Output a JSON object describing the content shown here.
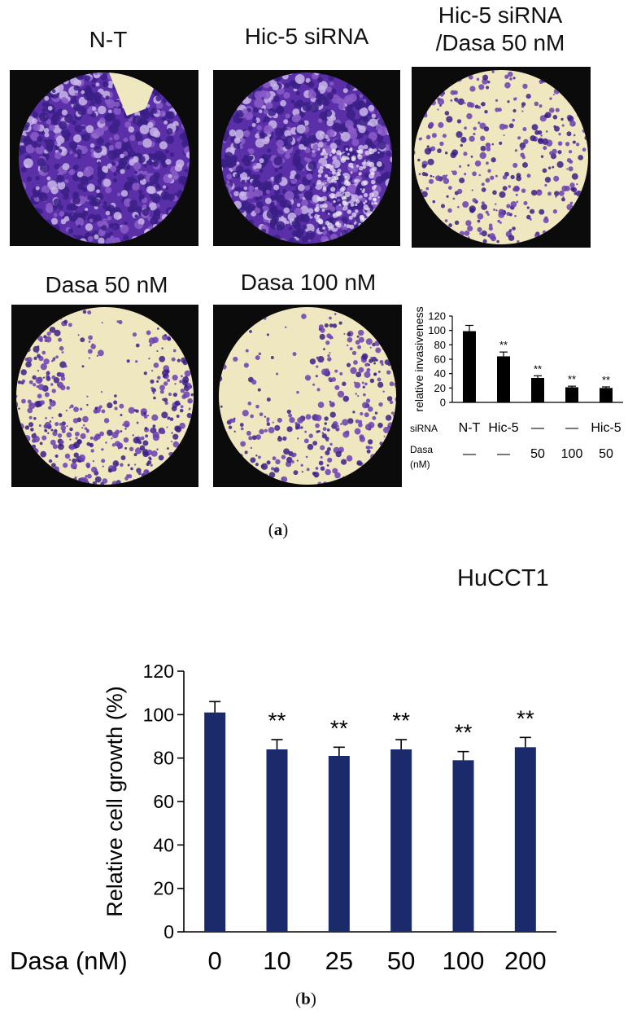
{
  "panel_a": {
    "label": "a",
    "images": [
      {
        "caption_lines": [
          "N-T"
        ],
        "palette": "purple-dense"
      },
      {
        "caption_lines": [
          "Hic-5 siRNA"
        ],
        "palette": "purple-dense"
      },
      {
        "caption_lines": [
          "Hic-5 siRNA",
          "/Dasa 50 nM"
        ],
        "palette": "sparse"
      },
      {
        "caption_lines": [
          "Dasa 50 nM"
        ],
        "palette": "medium"
      },
      {
        "caption_lines": [
          "Dasa 100 nM"
        ],
        "palette": "sparse-medium"
      }
    ],
    "colors": {
      "stain": "#6a3fb0",
      "stain_dark": "#3a1f86",
      "background_light": "#efe7c0",
      "frame": "#0b0b0b"
    }
  },
  "panel_b": {
    "label": "b",
    "colors": {
      "bar": "#1a2a6b"
    }
  },
  "chart_data": [
    {
      "type": "bar",
      "title": "",
      "ylabel": "relative invasiveness",
      "xlabel": "",
      "ylim": [
        0,
        120
      ],
      "yticks": [
        0,
        20,
        40,
        60,
        80,
        100,
        120
      ],
      "categories": [
        "N-T",
        "Hic-5",
        "—",
        "—",
        "Hic-5"
      ],
      "row_labels": {
        "siRNA": "siRNA",
        "dasa": "Dasa",
        "dasa_unit": "(nM)"
      },
      "dasa_values": [
        "—",
        "—",
        "50",
        "100",
        "50"
      ],
      "values": [
        99,
        64,
        34,
        21,
        20
      ],
      "errors": [
        8,
        6,
        3,
        1.5,
        1.5
      ],
      "annotations": [
        "",
        "**",
        "**",
        "**",
        "**"
      ],
      "bar_color": "#000000",
      "grid": false
    },
    {
      "type": "bar",
      "title": "HuCCT1",
      "ylabel": "Relative cell growth (%)",
      "xlabel": "Dasa (nM)",
      "ylim": [
        0,
        120
      ],
      "yticks": [
        0,
        20,
        40,
        60,
        80,
        100,
        120
      ],
      "categories": [
        "0",
        "10",
        "25",
        "50",
        "100",
        "200"
      ],
      "values": [
        101,
        84,
        81,
        84,
        79,
        85
      ],
      "errors": [
        5,
        4.5,
        4,
        4.5,
        4,
        4.5
      ],
      "annotations": [
        "",
        "**",
        "**",
        "**",
        "**",
        "**"
      ],
      "bar_color": "#1a2a6b",
      "grid": false
    }
  ]
}
